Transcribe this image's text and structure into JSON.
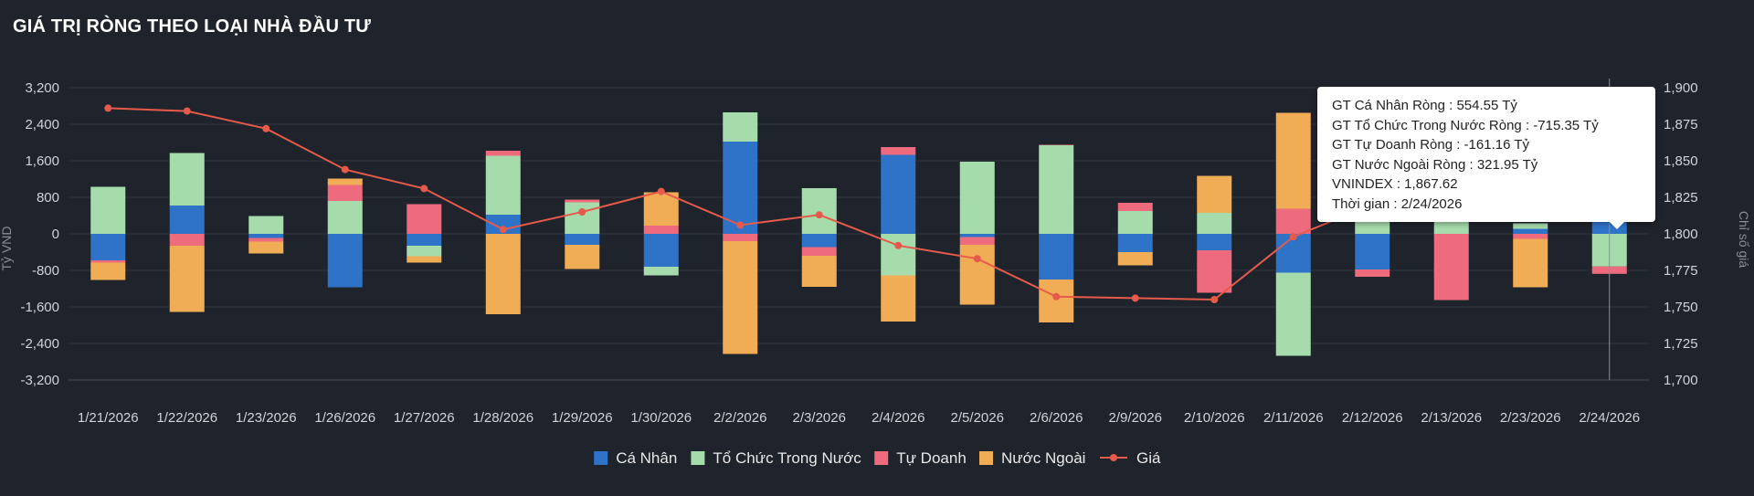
{
  "title": "GIÁ TRỊ RÒNG THEO LOẠI NHÀ ĐẦU TƯ",
  "chart_data": {
    "type": "bar",
    "stacked": true,
    "categories": [
      "1/21/2026",
      "1/22/2026",
      "1/23/2026",
      "1/26/2026",
      "1/27/2026",
      "1/28/2026",
      "1/29/2026",
      "1/30/2026",
      "2/2/2026",
      "2/3/2026",
      "2/4/2026",
      "2/5/2026",
      "2/6/2026",
      "2/9/2026",
      "2/10/2026",
      "2/11/2026",
      "2/12/2026",
      "2/13/2026",
      "2/23/2026",
      "2/24/2026"
    ],
    "series": [
      {
        "name": "Cá Nhân",
        "color": "#2f73c8",
        "values": [
          -580,
          620,
          -90,
          -1170,
          -260,
          420,
          -240,
          -720,
          2020,
          -290,
          1730,
          -70,
          -1000,
          -400,
          -360,
          -850,
          -780,
          0,
          110,
          555
        ]
      },
      {
        "name": "Tổ Chức Trong Nước",
        "color": "#a6dbab",
        "values": [
          1030,
          1150,
          390,
          720,
          -230,
          1290,
          690,
          -190,
          640,
          1000,
          -910,
          1580,
          1940,
          500,
          460,
          -1820,
          870,
          1100,
          120,
          -715
        ]
      },
      {
        "name": "Tự Doanh",
        "color": "#ed6b7c",
        "values": [
          -50,
          -260,
          -80,
          350,
          650,
          110,
          60,
          180,
          -160,
          -190,
          170,
          -170,
          10,
          180,
          -930,
          550,
          -160,
          -1450,
          -110,
          -161
        ]
      },
      {
        "name": "Nước Ngoài",
        "color": "#f0ad55",
        "values": [
          -380,
          -1450,
          -260,
          140,
          -140,
          -1760,
          -530,
          730,
          -2470,
          -680,
          -1010,
          -1310,
          -940,
          -290,
          810,
          2100,
          100,
          500,
          -1060,
          322
        ]
      }
    ],
    "line": {
      "name": "Giá",
      "color": "#e65a4b",
      "values": [
        1886,
        1884,
        1872,
        1844,
        1831,
        1803,
        1815,
        1829,
        1806,
        1813,
        1792,
        1783,
        1757,
        1756,
        1755,
        1798,
        1820,
        1830,
        1844,
        1868
      ]
    },
    "ylabel": "Tỷ VND",
    "y2label": "Chỉ số giá",
    "ylim": [
      -3200,
      3200
    ],
    "y2lim": [
      1700,
      1900
    ],
    "yticks": [
      "3,200",
      "2,400",
      "1,600",
      "800",
      "0",
      "-800",
      "-1,600",
      "-2,400",
      "-3,200"
    ],
    "y2ticks": [
      "1,900",
      "1,875",
      "1,850",
      "1,825",
      "1,800",
      "1,775",
      "1,750",
      "1,725",
      "1,700"
    ],
    "grid": true,
    "legend_position": "bottom",
    "hover_index": 19
  },
  "tooltip": {
    "lines": [
      "GT Cá Nhân Ròng  : 554.55 Tỷ",
      "GT Tổ Chức Trong Nước Ròng : -715.35 Tỷ",
      "GT Tự Doanh Ròng : -161.16 Tỷ",
      "GT Nước Ngoài Ròng : 321.95 Tỷ",
      "VNINDEX : 1,867.62",
      "Thời gian : 2/24/2026"
    ]
  }
}
